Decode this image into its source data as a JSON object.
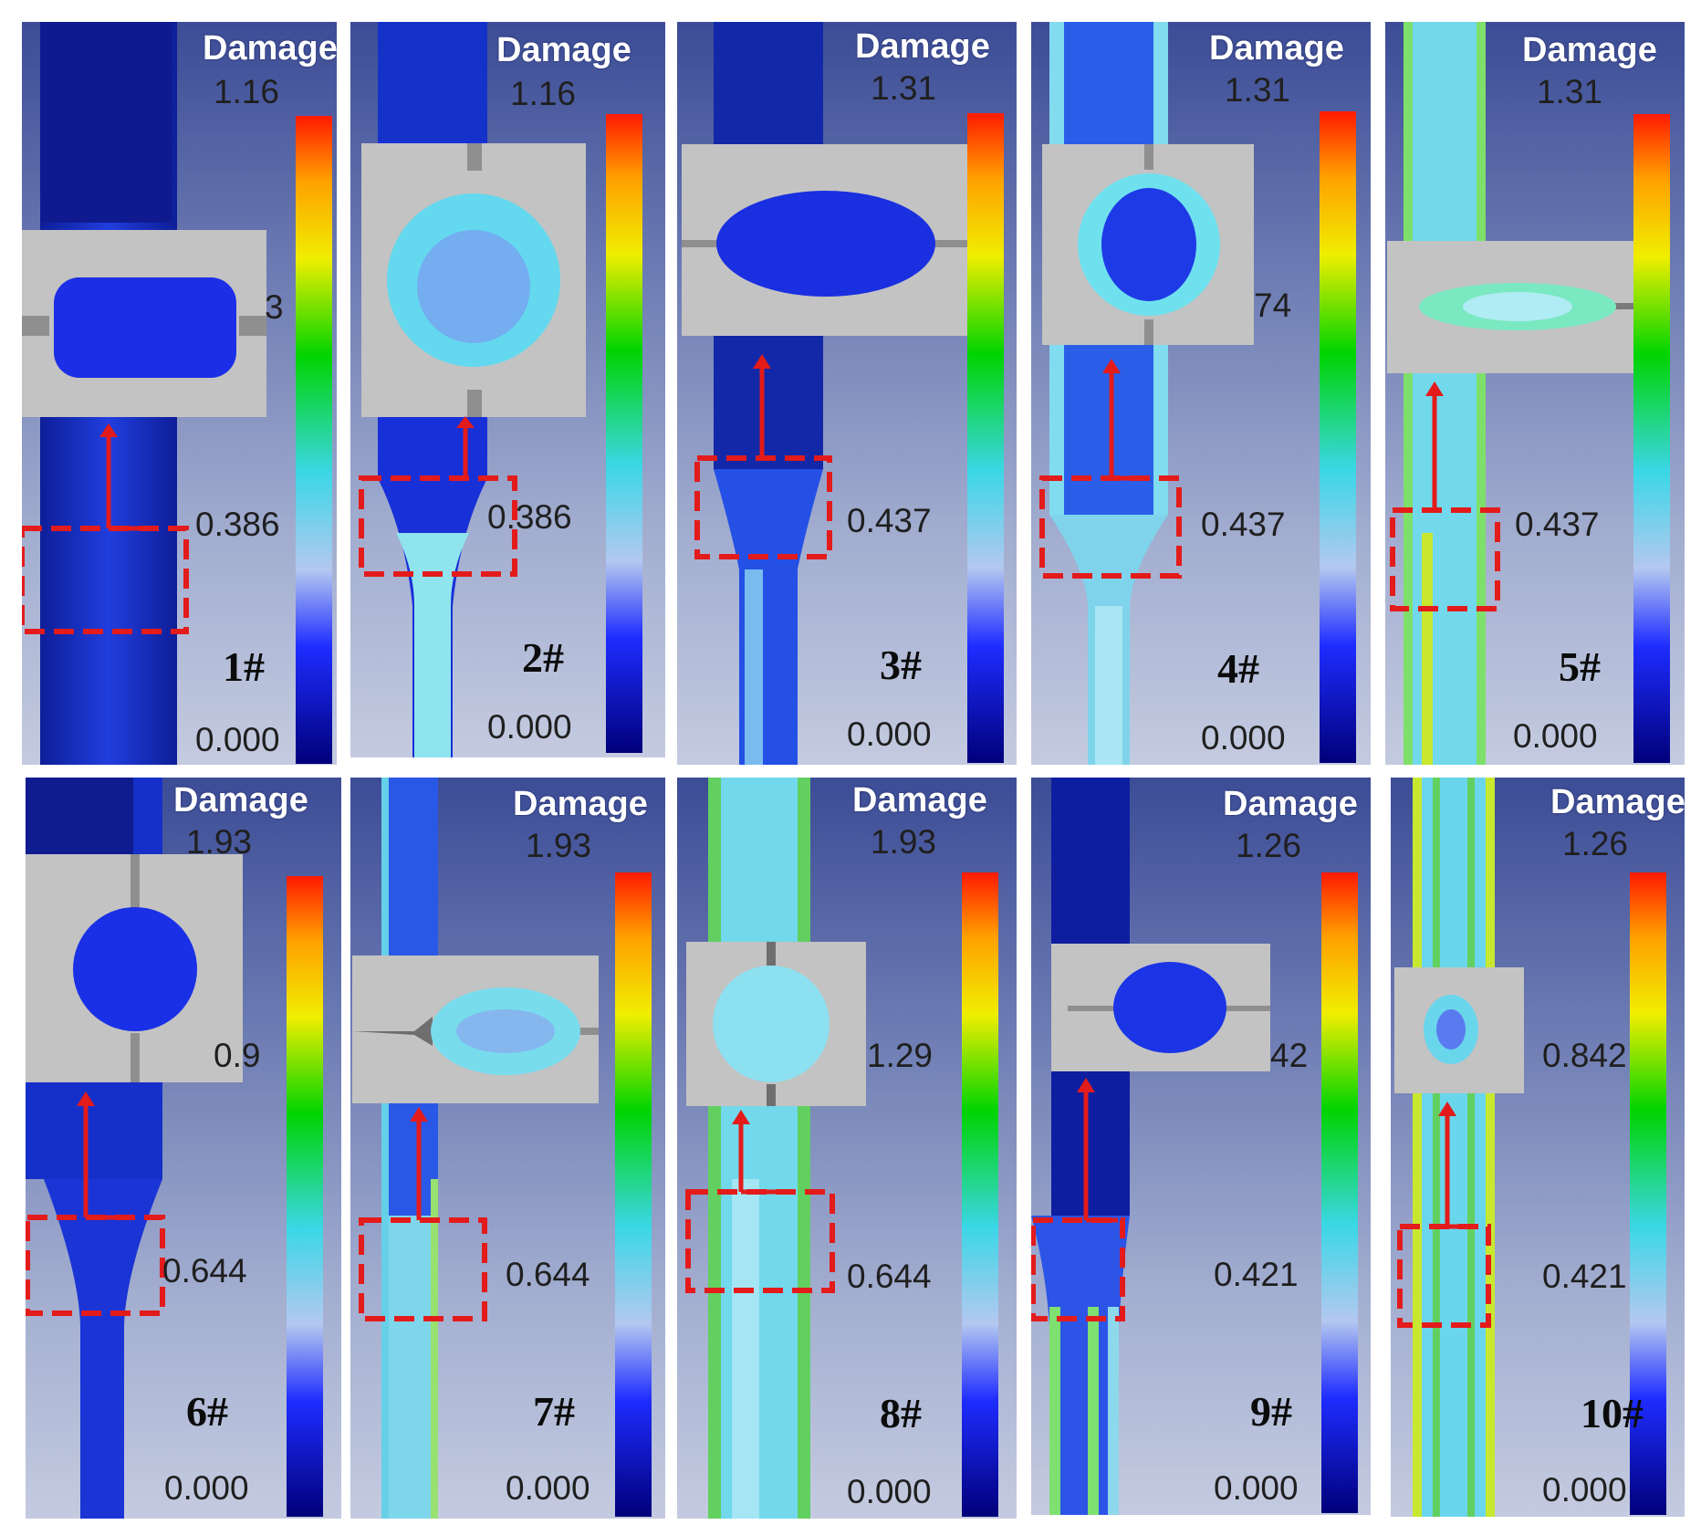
{
  "colors": {
    "scale_bottom": "#00007a",
    "scale_blue": "#1e2cff",
    "scale_lightblue": "#b4c8f0",
    "scale_cyan": "#3ad7e6",
    "scale_green": "#00d400",
    "scale_yellow": "#f0ee00",
    "scale_orange": "#ffa000",
    "scale_red": "#ff1a00",
    "marker": "#e31b1b",
    "inset_bg": "#c3c3c3"
  },
  "panels": [
    {
      "id": "1#",
      "title": "Damage",
      "max": "1.16",
      "mid": "0.386",
      "min": "0.000",
      "label": "1#",
      "inset_ghost": "3"
    },
    {
      "id": "2#",
      "title": "Damage",
      "max": "1.16",
      "mid": "0.386",
      "min": "0.000",
      "label": "2#"
    },
    {
      "id": "3#",
      "title": "Damage",
      "max": "1.31",
      "mid": "0.437",
      "min": "0.000",
      "label": "3#"
    },
    {
      "id": "4#",
      "title": "Damage",
      "max": "1.31",
      "mid": "0.437",
      "min": "0.000",
      "label": "4#",
      "inset_ghost": "74"
    },
    {
      "id": "5#",
      "title": "Damage",
      "max": "1.31",
      "mid": "0.437",
      "min": "0.000",
      "label": "5#"
    },
    {
      "id": "6#",
      "title": "Damage",
      "max": "1.93",
      "mid": "0.644",
      "min": "0.000",
      "label": "6#",
      "inset_ghost": "0.9"
    },
    {
      "id": "7#",
      "title": "Damage",
      "max": "1.93",
      "mid": "0.644",
      "min": "0.000",
      "label": "7#"
    },
    {
      "id": "8#",
      "title": "Damage",
      "max": "1.93",
      "mid": "0.644",
      "min": "0.000",
      "label": "8#",
      "upper": "1.29"
    },
    {
      "id": "9#",
      "title": "Damage",
      "max": "1.26",
      "mid": "0.421",
      "min": "0.000",
      "label": "9#",
      "inset_ghost": "42"
    },
    {
      "id": "10#",
      "title": "Damage",
      "max": "1.26",
      "mid": "0.421",
      "min": "0.000",
      "label": "10#",
      "upper": "0.842"
    }
  ]
}
